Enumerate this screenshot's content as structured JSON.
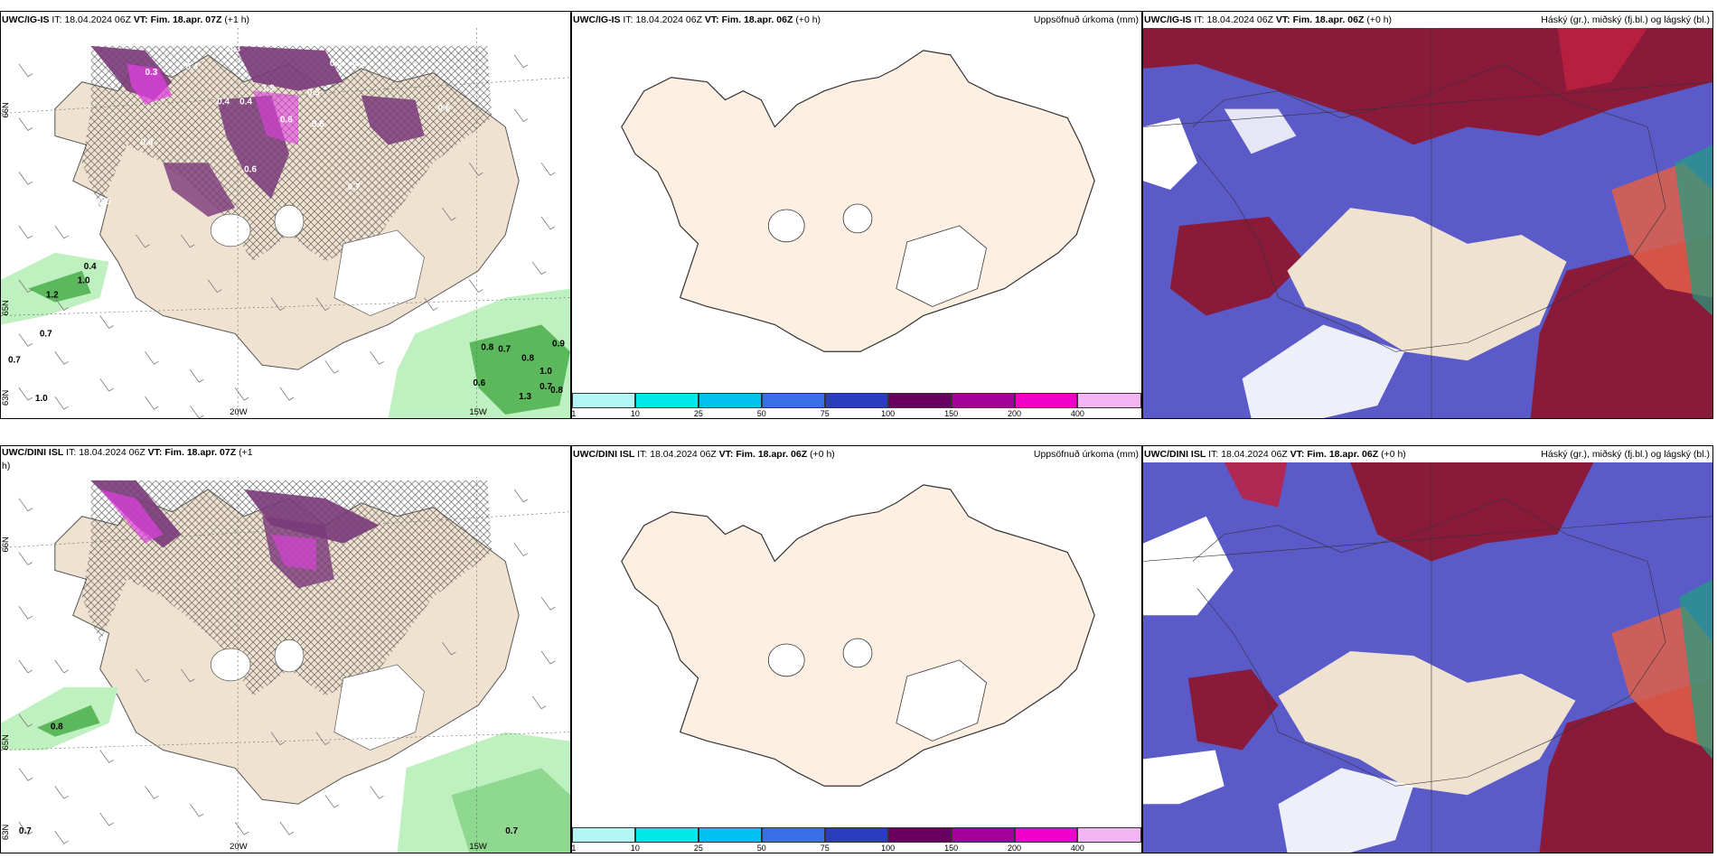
{
  "panels": {
    "r1c1": {
      "model": "UWC/IG-IS",
      "it_label": "IT:",
      "it": "18.04.2024 06Z",
      "vt_label": "VT:",
      "vt": "Fim. 18.apr. 07Z",
      "lead": "(+1 h)"
    },
    "r1c2": {
      "model": "UWC/IG-IS",
      "it_label": "IT:",
      "it": "18.04.2024 06Z",
      "vt_label": "VT:",
      "vt": "Fim. 18.apr. 06Z",
      "lead": "(+0 h)",
      "right": "Uppsöfnuð úrkoma (mm)"
    },
    "r1c3": {
      "model": "UWC/IG-IS",
      "it_label": "IT:",
      "it": "18.04.2024 06Z",
      "vt_label": "VT:",
      "vt": "Fim. 18.apr. 06Z",
      "lead": "(+0 h)",
      "right": "Háský (gr.), miðský (fj.bl.) og lágský (bl.)"
    },
    "r2c1": {
      "model": "UWC/DINI ISL",
      "it_label": "IT:",
      "it": "18.04.2024 06Z",
      "vt_label": "VT:",
      "vt": "Fim. 18.apr. 07Z",
      "lead": "(+1",
      "lead2": "h)"
    },
    "r2c2": {
      "model": "UWC/DINI ISL",
      "it_label": "IT:",
      "it": "18.04.2024 06Z",
      "vt_label": "VT:",
      "vt": "Fim. 18.apr. 06Z",
      "lead": "(+0 h)",
      "right": "Uppsöfnuð úrkoma (mm)"
    },
    "r2c3": {
      "model": "UWC/DINI ISL",
      "it_label": "IT:",
      "it": "18.04.2024 06Z",
      "vt_label": "VT:",
      "vt": "Fim. 18.apr. 06Z",
      "lead": "(+0 h)",
      "right": "Háský (gr.), miðský (fj.bl.) og lágský (bl.)"
    }
  },
  "axes": {
    "lon1": "20W",
    "lon2": "15W",
    "lat_top": "66N",
    "lat_mid": "65N",
    "lat_bot": "63N"
  },
  "colorbar": {
    "ticks": [
      "1",
      "10",
      "25",
      "50",
      "75",
      "100",
      "150",
      "200",
      "400"
    ],
    "colors": [
      "#b4f5f5",
      "#00e8e8",
      "#00c2f0",
      "#3a6ee8",
      "#2a3dbc",
      "#6a0060",
      "#a4009a",
      "#f000c8",
      "#f2b4f2"
    ]
  },
  "precip_values": {
    "r1c1": [
      "0.3",
      "0.3",
      "0.3",
      "0.3",
      "0.4",
      "0.4",
      "0.4",
      "1.9",
      "0.5",
      "0.6",
      "0.6",
      "0.6",
      "0.6",
      "0.6",
      "0.6",
      "0.6",
      "0.7",
      "0.4",
      "1.0",
      "1.2",
      "0.7",
      "0.7",
      "1.0",
      "0.8",
      "0.7",
      "0.8",
      "0.9",
      "1.0",
      "0.6",
      "0.7",
      "0.8",
      "1.3"
    ],
    "r2c1": [
      "0.8",
      "0.7",
      "0.7"
    ]
  },
  "colors": {
    "land": "#f0e2d0",
    "land_pale": "#fdf0e2",
    "green": "#5cb85c",
    "purple": "#7a3a7a",
    "magenta": "#e040e0",
    "cloud_blue": "#5a5ac8",
    "cloud_red": "#8a1a3a"
  }
}
